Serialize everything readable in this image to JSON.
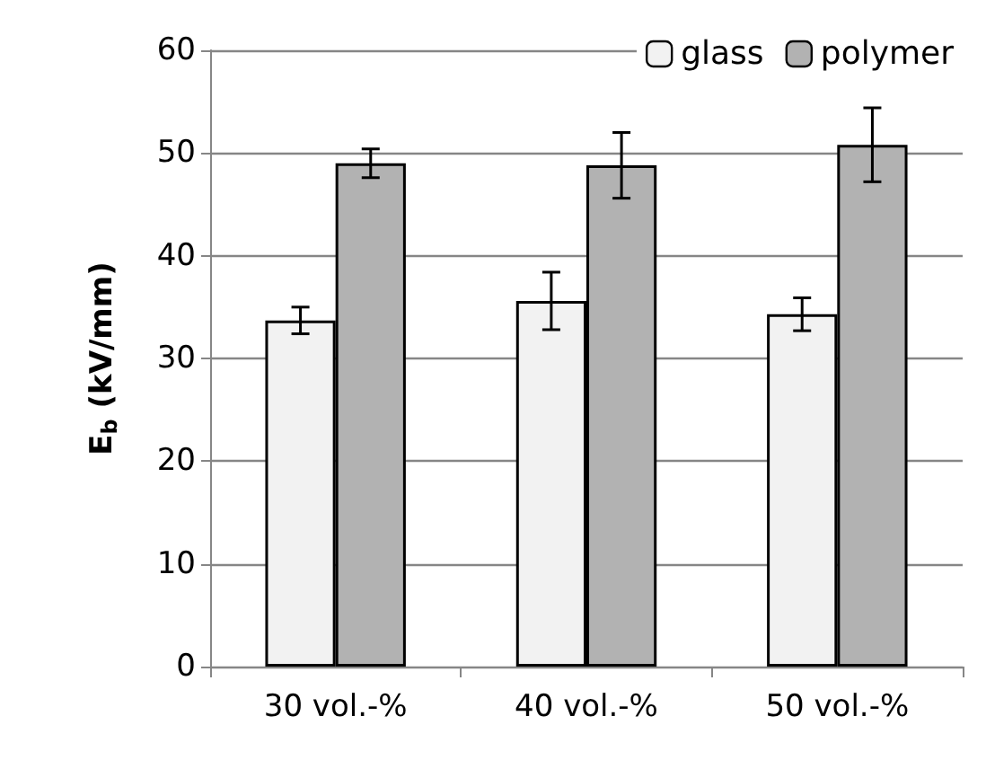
{
  "chart_data": {
    "type": "bar",
    "ylabel": "E$_{b}$ (kV/mm)",
    "categories": [
      "30 vol.-%",
      "40 vol.-%",
      "50 vol.-%"
    ],
    "series": [
      {
        "name": "glass",
        "color": "#f2f2f2",
        "values": [
          33.7,
          35.6,
          34.3
        ],
        "errors": [
          1.3,
          2.8,
          1.6
        ]
      },
      {
        "name": "polymer",
        "color": "#b2b2b2",
        "values": [
          49.0,
          48.8,
          50.8
        ],
        "errors": [
          1.4,
          3.2,
          3.6
        ]
      }
    ],
    "ylim": [
      0,
      60
    ],
    "yticks": [
      0,
      10,
      20,
      30,
      40,
      50,
      60
    ],
    "grid": "y",
    "legend": "top right"
  }
}
